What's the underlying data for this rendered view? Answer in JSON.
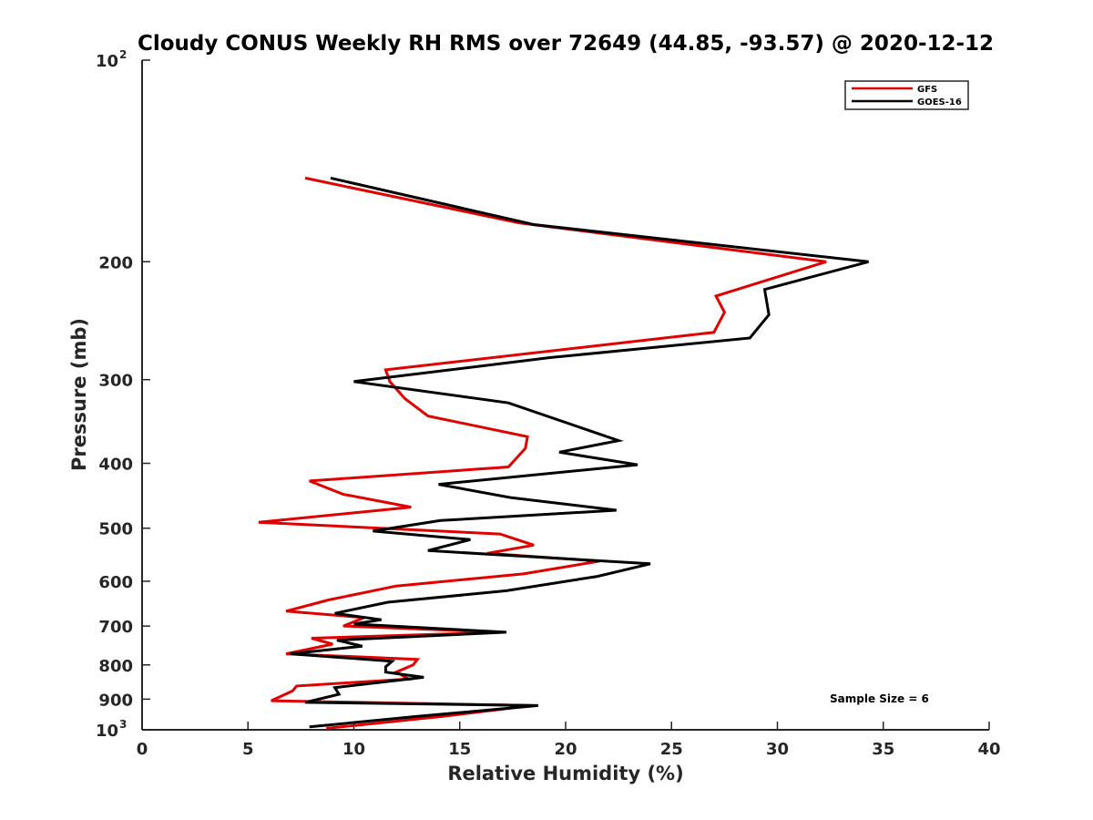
{
  "chart_data": {
    "type": "line",
    "title": "Cloudy CONUS Weekly RH RMS over 72649 (44.85, -93.57) @ 2020-12-12",
    "xlabel": "Relative Humidity (%)",
    "ylabel": "Pressure (mb)",
    "xlim": [
      0,
      40
    ],
    "ylim": [
      100,
      1000
    ],
    "yscale": "log",
    "y_reversed": true,
    "xticks": [
      0,
      5,
      10,
      15,
      20,
      25,
      30,
      35,
      40
    ],
    "xtick_labels": [
      "0",
      "5",
      "10",
      "15",
      "20",
      "25",
      "30",
      "35",
      "40"
    ],
    "yticks": [
      {
        "value": 100,
        "base": "10",
        "exp": "2"
      },
      {
        "value": 200,
        "label": "200"
      },
      {
        "value": 300,
        "label": "300"
      },
      {
        "value": 400,
        "label": "400"
      },
      {
        "value": 500,
        "label": "500"
      },
      {
        "value": 600,
        "label": "600"
      },
      {
        "value": 700,
        "label": "700"
      },
      {
        "value": 800,
        "label": "800"
      },
      {
        "value": 900,
        "label": "900"
      },
      {
        "value": 1000,
        "base": "10",
        "exp": "3"
      }
    ],
    "grid": false,
    "legend_position": "top-right",
    "annotation": "Sample Size = 6",
    "series": [
      {
        "name": "GFS",
        "color": "#e00000",
        "points": [
          [
            7.7,
            150
          ],
          [
            17.8,
            175
          ],
          [
            32.3,
            200
          ],
          [
            27.1,
            225
          ],
          [
            27.5,
            238
          ],
          [
            27.0,
            255
          ],
          [
            11.5,
            290
          ],
          [
            11.7,
            302
          ],
          [
            12.4,
            320
          ],
          [
            13.5,
            340
          ],
          [
            18.2,
            365
          ],
          [
            18.1,
            380
          ],
          [
            17.3,
            405
          ],
          [
            7.9,
            425
          ],
          [
            9.5,
            445
          ],
          [
            12.7,
            465
          ],
          [
            5.5,
            490
          ],
          [
            16.9,
            510
          ],
          [
            18.5,
            530
          ],
          [
            16.3,
            545
          ],
          [
            21.6,
            560
          ],
          [
            18.0,
            585
          ],
          [
            12.0,
            610
          ],
          [
            8.8,
            640
          ],
          [
            6.8,
            665
          ],
          [
            10.5,
            680
          ],
          [
            9.5,
            700
          ],
          [
            17.0,
            715
          ],
          [
            8.0,
            730
          ],
          [
            9.0,
            745
          ],
          [
            6.8,
            770
          ],
          [
            13.0,
            785
          ],
          [
            12.8,
            800
          ],
          [
            12.0,
            820
          ],
          [
            12.6,
            840
          ],
          [
            7.3,
            860
          ],
          [
            7.1,
            875
          ],
          [
            6.1,
            905
          ],
          [
            18.4,
            920
          ],
          [
            14.2,
            955
          ],
          [
            8.7,
            995
          ]
        ]
      },
      {
        "name": "GOES-16",
        "color": "#000000",
        "points": [
          [
            8.9,
            150
          ],
          [
            18.5,
            176
          ],
          [
            34.3,
            200
          ],
          [
            29.4,
            220
          ],
          [
            29.6,
            240
          ],
          [
            28.7,
            260
          ],
          [
            19.3,
            278
          ],
          [
            10.0,
            302
          ],
          [
            17.3,
            325
          ],
          [
            22.5,
            370
          ],
          [
            19.7,
            385
          ],
          [
            23.4,
            402
          ],
          [
            14.0,
            430
          ],
          [
            17.4,
            450
          ],
          [
            22.4,
            470
          ],
          [
            14.1,
            487
          ],
          [
            10.9,
            505
          ],
          [
            15.5,
            520
          ],
          [
            13.5,
            540
          ],
          [
            24.0,
            565
          ],
          [
            21.5,
            590
          ],
          [
            17.2,
            620
          ],
          [
            11.6,
            645
          ],
          [
            9.1,
            670
          ],
          [
            11.3,
            685
          ],
          [
            10.0,
            695
          ],
          [
            17.2,
            715
          ],
          [
            9.2,
            735
          ],
          [
            10.4,
            750
          ],
          [
            7.0,
            770
          ],
          [
            11.8,
            790
          ],
          [
            11.5,
            805
          ],
          [
            11.5,
            820
          ],
          [
            13.3,
            835
          ],
          [
            9.1,
            865
          ],
          [
            9.3,
            885
          ],
          [
            7.7,
            910
          ],
          [
            18.7,
            920
          ],
          [
            13.0,
            955
          ],
          [
            7.9,
            990
          ]
        ]
      }
    ]
  }
}
